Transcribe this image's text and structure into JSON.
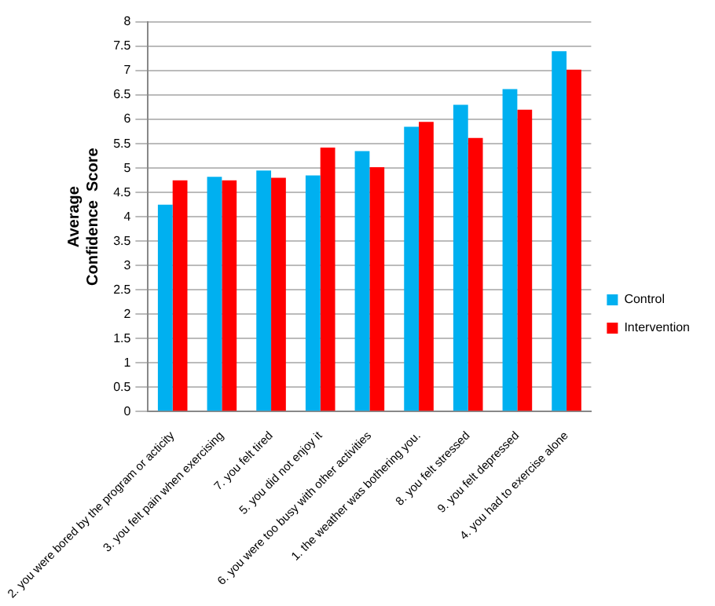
{
  "chart_data": {
    "type": "bar",
    "ylabel": "Average\nConfidence  Score",
    "categories": [
      "2. you were bored by the program or acticity",
      "3. you felt pain when exercising",
      "7. you felt tired",
      "5. you did not enjoy it",
      "6. you were too busy with other activities",
      "1. the weather was bothering you.",
      "8. you felt stressed",
      "9. you felt depressed",
      "4. you had to exercise alone"
    ],
    "series": [
      {
        "name": "Control",
        "color": "#00b0f0",
        "values": [
          4.25,
          4.82,
          4.95,
          4.85,
          5.35,
          5.85,
          6.3,
          6.62,
          7.4
        ]
      },
      {
        "name": "Intervention",
        "color": "#ff0000",
        "values": [
          4.75,
          4.75,
          4.8,
          5.42,
          5.02,
          5.95,
          5.62,
          6.2,
          7.02
        ]
      }
    ],
    "ylim": [
      0,
      8
    ],
    "yticks": [
      0,
      0.5,
      1,
      1.5,
      2,
      2.5,
      3,
      3.5,
      4,
      4.5,
      5,
      5.5,
      6,
      6.5,
      7,
      7.5,
      8
    ],
    "grid": "y",
    "legend": "right"
  }
}
